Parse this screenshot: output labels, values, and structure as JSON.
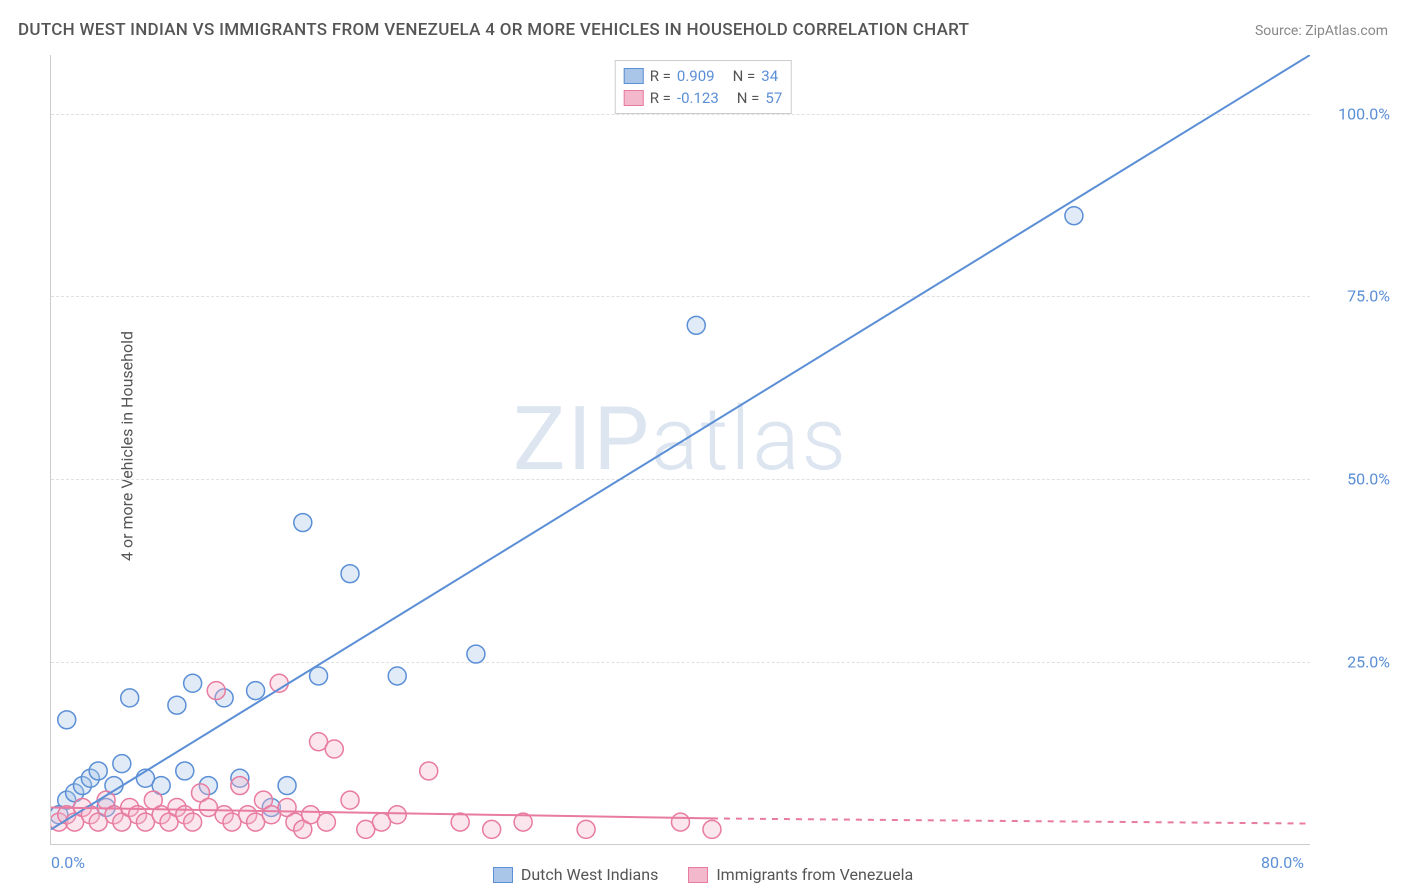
{
  "title": "DUTCH WEST INDIAN VS IMMIGRANTS FROM VENEZUELA 4 OR MORE VEHICLES IN HOUSEHOLD CORRELATION CHART",
  "source": "Source: ZipAtlas.com",
  "watermark_main": "ZIP",
  "watermark_sub": "atlas",
  "y_axis_label": "4 or more Vehicles in Household",
  "chart": {
    "type": "scatter",
    "xlim": [
      0,
      80
    ],
    "ylim": [
      0,
      108
    ],
    "yticks": [
      {
        "v": 25,
        "label": "25.0%"
      },
      {
        "v": 50,
        "label": "50.0%"
      },
      {
        "v": 75,
        "label": "75.0%"
      },
      {
        "v": 100,
        "label": "100.0%"
      }
    ],
    "xticks": [
      {
        "v": 0,
        "label": "0.0%"
      },
      {
        "v": 80,
        "label": "80.0%"
      }
    ],
    "grid_color": "#e0e0e0",
    "background_color": "#ffffff",
    "axis_color": "#cccccc",
    "tick_label_color": "#5b8fd6",
    "marker_radius": 9,
    "marker_stroke_width": 1.5,
    "marker_fill_opacity": 0.35,
    "line_width": 2,
    "series": [
      {
        "name": "Dutch West Indians",
        "color_stroke": "#5b8fd6",
        "color_fill": "#a9c5e8",
        "R": "0.909",
        "N": "34",
        "trend": {
          "x1": 0,
          "y1": 2,
          "x2": 80,
          "y2": 108,
          "dashed_from_x": 80
        },
        "points": [
          [
            0.5,
            4
          ],
          [
            1,
            6
          ],
          [
            1.5,
            7
          ],
          [
            2,
            8
          ],
          [
            2.5,
            9
          ],
          [
            1,
            17
          ],
          [
            3,
            10
          ],
          [
            3.5,
            5
          ],
          [
            4,
            8
          ],
          [
            4.5,
            11
          ],
          [
            5,
            20
          ],
          [
            6,
            9
          ],
          [
            7,
            8
          ],
          [
            8,
            19
          ],
          [
            8.5,
            10
          ],
          [
            9,
            22
          ],
          [
            10,
            8
          ],
          [
            11,
            20
          ],
          [
            12,
            9
          ],
          [
            13,
            21
          ],
          [
            14,
            5
          ],
          [
            15,
            8
          ],
          [
            16,
            44
          ],
          [
            17,
            23
          ],
          [
            19,
            37
          ],
          [
            22,
            23
          ],
          [
            27,
            26
          ],
          [
            41,
            71
          ],
          [
            65,
            86
          ]
        ]
      },
      {
        "name": "Immigrants from Venezuela",
        "color_stroke": "#e87ba0",
        "color_fill": "#f4b8cc",
        "R": "-0.123",
        "N": "57",
        "trend": {
          "x1": 0,
          "y1": 5,
          "x2": 42,
          "y2": 3.5,
          "dashed_to_x": 80,
          "dashed_to_y": 2.8
        },
        "points": [
          [
            0.5,
            3
          ],
          [
            1,
            4
          ],
          [
            1.5,
            3
          ],
          [
            2,
            5
          ],
          [
            2.5,
            4
          ],
          [
            3,
            3
          ],
          [
            3.5,
            6
          ],
          [
            4,
            4
          ],
          [
            4.5,
            3
          ],
          [
            5,
            5
          ],
          [
            5.5,
            4
          ],
          [
            6,
            3
          ],
          [
            6.5,
            6
          ],
          [
            7,
            4
          ],
          [
            7.5,
            3
          ],
          [
            8,
            5
          ],
          [
            8.5,
            4
          ],
          [
            9,
            3
          ],
          [
            9.5,
            7
          ],
          [
            10,
            5
          ],
          [
            10.5,
            21
          ],
          [
            11,
            4
          ],
          [
            11.5,
            3
          ],
          [
            12,
            8
          ],
          [
            12.5,
            4
          ],
          [
            13,
            3
          ],
          [
            13.5,
            6
          ],
          [
            14,
            4
          ],
          [
            14.5,
            22
          ],
          [
            15,
            5
          ],
          [
            15.5,
            3
          ],
          [
            16,
            2
          ],
          [
            16.5,
            4
          ],
          [
            17,
            14
          ],
          [
            17.5,
            3
          ],
          [
            18,
            13
          ],
          [
            19,
            6
          ],
          [
            20,
            2
          ],
          [
            21,
            3
          ],
          [
            22,
            4
          ],
          [
            24,
            10
          ],
          [
            26,
            3
          ],
          [
            28,
            2
          ],
          [
            30,
            3
          ],
          [
            34,
            2
          ],
          [
            40,
            3
          ],
          [
            42,
            2
          ]
        ]
      }
    ]
  },
  "legend_bottom": [
    {
      "label": "Dutch West Indians",
      "fill": "#a9c5e8",
      "stroke": "#5b8fd6"
    },
    {
      "label": "Immigrants from Venezuela",
      "fill": "#f4b8cc",
      "stroke": "#e87ba0"
    }
  ]
}
